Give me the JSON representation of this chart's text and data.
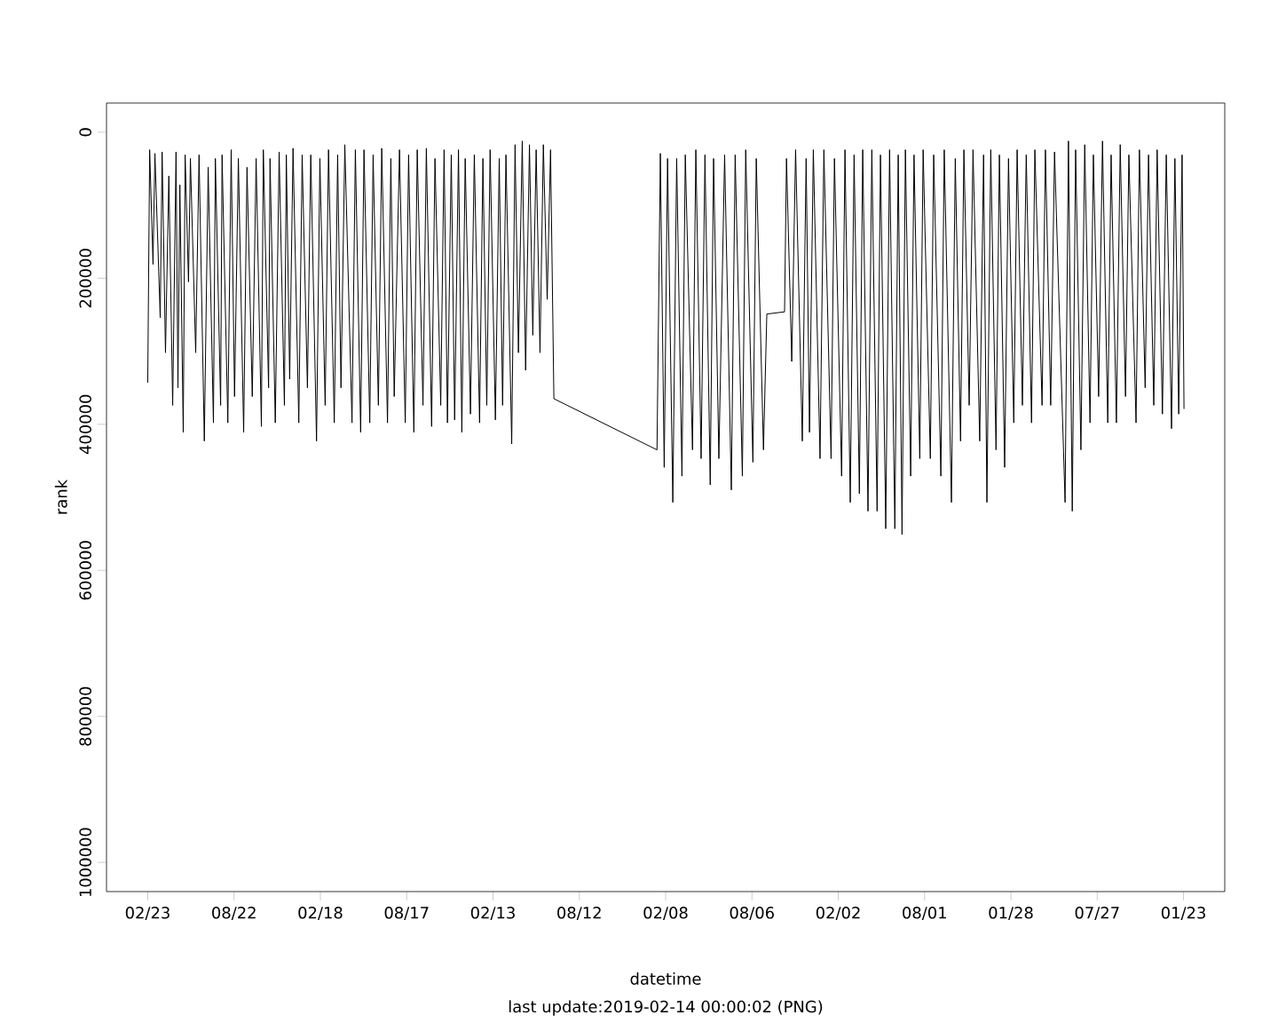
{
  "chart_data": {
    "type": "line",
    "xlabel": "datetime",
    "ylabel": "rank",
    "annotations": [
      "last update:2019-02-14 00:00:02 (PNG)"
    ],
    "xlim": [
      "2012-11-29",
      "2019-04-19"
    ],
    "ylim": [
      1040000,
      -40000
    ],
    "xticks": [
      {
        "value": "2013-02-23",
        "label": "02/23"
      },
      {
        "value": "2013-08-22",
        "label": "08/22"
      },
      {
        "value": "2014-02-18",
        "label": "02/18"
      },
      {
        "value": "2014-08-17",
        "label": "08/17"
      },
      {
        "value": "2015-02-13",
        "label": "02/13"
      },
      {
        "value": "2015-08-12",
        "label": "08/12"
      },
      {
        "value": "2016-02-08",
        "label": "02/08"
      },
      {
        "value": "2016-08-06",
        "label": "08/06"
      },
      {
        "value": "2017-02-02",
        "label": "02/02"
      },
      {
        "value": "2017-08-01",
        "label": "08/01"
      },
      {
        "value": "2018-01-28",
        "label": "01/28"
      },
      {
        "value": "2018-07-27",
        "label": "07/27"
      },
      {
        "value": "2019-01-23",
        "label": "01/23"
      }
    ],
    "yticks": [
      0,
      200000,
      400000,
      600000,
      800000,
      1000000
    ],
    "color": "#000000",
    "marker": "none",
    "line_style": "solid",
    "x": [
      "2013-02-23",
      "2013-02-27",
      "2013-03-06",
      "2013-03-10",
      "2013-03-21",
      "2013-03-25",
      "2013-04-01",
      "2013-04-08",
      "2013-04-16",
      "2013-04-23",
      "2013-04-27",
      "2013-05-01",
      "2013-05-08",
      "2013-05-12",
      "2013-05-19",
      "2013-05-23",
      "2013-06-03",
      "2013-06-10",
      "2013-06-21",
      "2013-06-29",
      "2013-07-10",
      "2013-07-14",
      "2013-07-25",
      "2013-07-28",
      "2013-08-09",
      "2013-08-16",
      "2013-08-23",
      "2013-08-31",
      "2013-09-11",
      "2013-09-18",
      "2013-09-29",
      "2013-10-07",
      "2013-10-18",
      "2013-10-22",
      "2013-11-02",
      "2013-11-05",
      "2013-11-16",
      "2013-11-24",
      "2013-12-05",
      "2013-12-09",
      "2013-12-16",
      "2013-12-23",
      "2014-01-04",
      "2014-01-11",
      "2014-01-22",
      "2014-01-29",
      "2014-02-10",
      "2014-02-17",
      "2014-02-28",
      "2014-03-07",
      "2014-03-19",
      "2014-03-26",
      "2014-04-02",
      "2014-04-10",
      "2014-04-25",
      "2014-05-02",
      "2014-05-13",
      "2014-05-20",
      "2014-06-01",
      "2014-06-08",
      "2014-06-19",
      "2014-06-26",
      "2014-07-08",
      "2014-07-15",
      "2014-07-22",
      "2014-08-02",
      "2014-08-14",
      "2014-08-21",
      "2014-09-01",
      "2014-09-08",
      "2014-09-20",
      "2014-09-27",
      "2014-10-08",
      "2014-10-15",
      "2014-10-27",
      "2014-11-03",
      "2014-11-10",
      "2014-11-18",
      "2014-11-25",
      "2014-12-03",
      "2014-12-10",
      "2014-12-17",
      "2014-12-28",
      "2015-01-05",
      "2015-01-16",
      "2015-01-23",
      "2015-01-31",
      "2015-02-07",
      "2015-02-18",
      "2015-02-26",
      "2015-03-05",
      "2015-03-12",
      "2015-03-24",
      "2015-03-31",
      "2015-04-07",
      "2015-04-15",
      "2015-04-22",
      "2015-04-30",
      "2015-05-07",
      "2015-05-14",
      "2015-05-22",
      "2015-05-29",
      "2015-06-06",
      "2015-06-13",
      "2015-06-20",
      "2016-01-21",
      "2016-01-28",
      "2016-02-05",
      "2016-02-12",
      "2016-02-23",
      "2016-03-02",
      "2016-03-13",
      "2016-03-20",
      "2016-04-04",
      "2016-04-11",
      "2016-04-22",
      "2016-04-30",
      "2016-05-11",
      "2016-05-18",
      "2016-05-29",
      "2016-06-10",
      "2016-06-24",
      "2016-07-02",
      "2016-07-17",
      "2016-07-24",
      "2016-08-08",
      "2016-08-15",
      "2016-08-30",
      "2016-09-06",
      "2016-10-13",
      "2016-10-17",
      "2016-10-28",
      "2016-11-05",
      "2016-11-19",
      "2016-11-27",
      "2016-12-04",
      "2016-12-12",
      "2016-12-26",
      "2017-01-03",
      "2017-01-18",
      "2017-01-25",
      "2017-02-09",
      "2017-02-16",
      "2017-02-27",
      "2017-03-07",
      "2017-03-18",
      "2017-03-25",
      "2017-04-05",
      "2017-04-13",
      "2017-04-24",
      "2017-05-01",
      "2017-05-12",
      "2017-05-20",
      "2017-05-31",
      "2017-06-07",
      "2017-06-15",
      "2017-06-22",
      "2017-07-03",
      "2017-07-10",
      "2017-07-22",
      "2017-07-29",
      "2017-08-13",
      "2017-08-20",
      "2017-09-04",
      "2017-09-11",
      "2017-09-26",
      "2017-10-04",
      "2017-10-15",
      "2017-10-22",
      "2017-11-02",
      "2017-11-10",
      "2017-11-24",
      "2017-12-02",
      "2017-12-09",
      "2017-12-17",
      "2017-12-28",
      "2018-01-04",
      "2018-01-15",
      "2018-01-23",
      "2018-02-03",
      "2018-02-10",
      "2018-02-21",
      "2018-03-01",
      "2018-03-12",
      "2018-03-19",
      "2018-04-03",
      "2018-04-10",
      "2018-04-21",
      "2018-04-29",
      "2018-05-21",
      "2018-05-28",
      "2018-06-05",
      "2018-06-12",
      "2018-06-23",
      "2018-07-01",
      "2018-07-12",
      "2018-07-19",
      "2018-07-30",
      "2018-08-07",
      "2018-08-18",
      "2018-08-25",
      "2018-09-05",
      "2018-09-13",
      "2018-09-24",
      "2018-10-01",
      "2018-10-16",
      "2018-10-23",
      "2018-11-04",
      "2018-11-11",
      "2018-11-22",
      "2018-11-29",
      "2018-12-10",
      "2018-12-18",
      "2018-12-29",
      "2019-01-05",
      "2019-01-13",
      "2019-01-20",
      "2019-01-24"
    ],
    "values": [
      343000,
      24000,
      181000,
      29000,
      254000,
      27000,
      302000,
      60000,
      374000,
      27000,
      350000,
      72000,
      411000,
      31000,
      205000,
      36000,
      302000,
      31000,
      423000,
      48000,
      398000,
      36000,
      374000,
      31000,
      398000,
      24000,
      362000,
      36000,
      411000,
      48000,
      362000,
      36000,
      403000,
      24000,
      350000,
      36000,
      398000,
      27000,
      374000,
      31000,
      338000,
      22000,
      398000,
      31000,
      350000,
      31000,
      423000,
      36000,
      374000,
      24000,
      398000,
      31000,
      350000,
      17000,
      398000,
      24000,
      411000,
      24000,
      398000,
      31000,
      374000,
      22000,
      398000,
      36000,
      362000,
      24000,
      398000,
      31000,
      411000,
      24000,
      374000,
      22000,
      403000,
      36000,
      374000,
      24000,
      398000,
      31000,
      394000,
      24000,
      411000,
      36000,
      386000,
      31000,
      398000,
      36000,
      374000,
      24000,
      394000,
      36000,
      374000,
      31000,
      427000,
      17000,
      302000,
      12000,
      326000,
      17000,
      278000,
      24000,
      302000,
      17000,
      229000,
      24000,
      365000,
      435000,
      29000,
      459000,
      36000,
      507000,
      36000,
      471000,
      31000,
      435000,
      24000,
      447000,
      31000,
      483000,
      36000,
      447000,
      31000,
      490000,
      31000,
      471000,
      24000,
      452000,
      36000,
      435000,
      249000,
      246000,
      36000,
      314000,
      24000,
      423000,
      36000,
      411000,
      24000,
      447000,
      24000,
      447000,
      36000,
      471000,
      24000,
      507000,
      31000,
      495000,
      24000,
      519000,
      24000,
      519000,
      31000,
      543000,
      24000,
      543000,
      31000,
      551000,
      24000,
      471000,
      31000,
      447000,
      24000,
      447000,
      31000,
      471000,
      24000,
      507000,
      36000,
      423000,
      24000,
      374000,
      24000,
      423000,
      31000,
      507000,
      24000,
      435000,
      31000,
      459000,
      36000,
      398000,
      24000,
      374000,
      31000,
      398000,
      24000,
      374000,
      24000,
      374000,
      27000,
      507000,
      12000,
      519000,
      24000,
      435000,
      17000,
      398000,
      31000,
      362000,
      12000,
      398000,
      31000,
      398000,
      17000,
      362000,
      31000,
      398000,
      24000,
      350000,
      31000,
      374000,
      24000,
      386000,
      31000,
      406000,
      36000,
      386000,
      31000,
      379000
    ]
  }
}
